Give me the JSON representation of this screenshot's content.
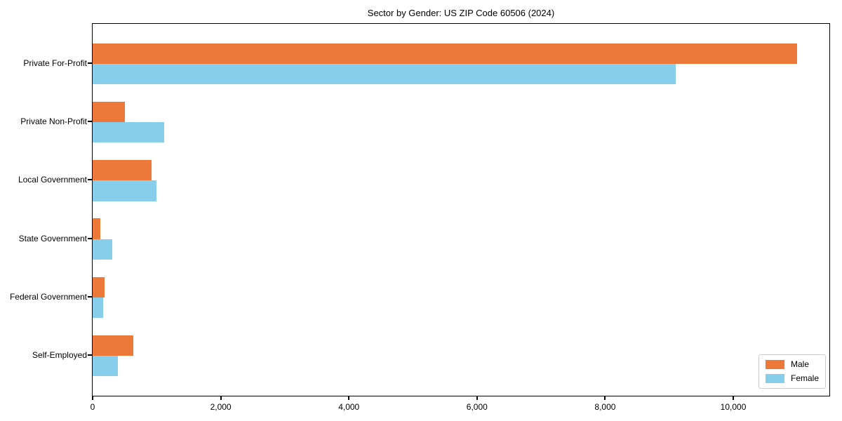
{
  "chart_data": {
    "type": "bar",
    "orientation": "horizontal",
    "title": "Sector by Gender: US ZIP Code 60506 (2024)",
    "categories": [
      "Private For-Profit",
      "Private Non-Profit",
      "Local Government",
      "State Government",
      "Federal Government",
      "Self-Employed"
    ],
    "series": [
      {
        "name": "Male",
        "color": "#EC7839",
        "values": [
          11000,
          500,
          920,
          120,
          190,
          630
        ]
      },
      {
        "name": "Female",
        "color": "#87CEEB",
        "values": [
          9100,
          1120,
          1000,
          310,
          160,
          390
        ]
      }
    ],
    "xlabel": "",
    "ylabel": "",
    "xlim": [
      0,
      11500
    ],
    "xticks": [
      0,
      2000,
      4000,
      6000,
      8000,
      10000
    ],
    "xtick_labels": [
      "0",
      "2,000",
      "4,000",
      "6,000",
      "8,000",
      "10,000"
    ],
    "grid": false,
    "legend_position": "lower right",
    "colors": {
      "axis": "#000000",
      "legend_border": "#cccccc",
      "background": "#ffffff"
    }
  }
}
